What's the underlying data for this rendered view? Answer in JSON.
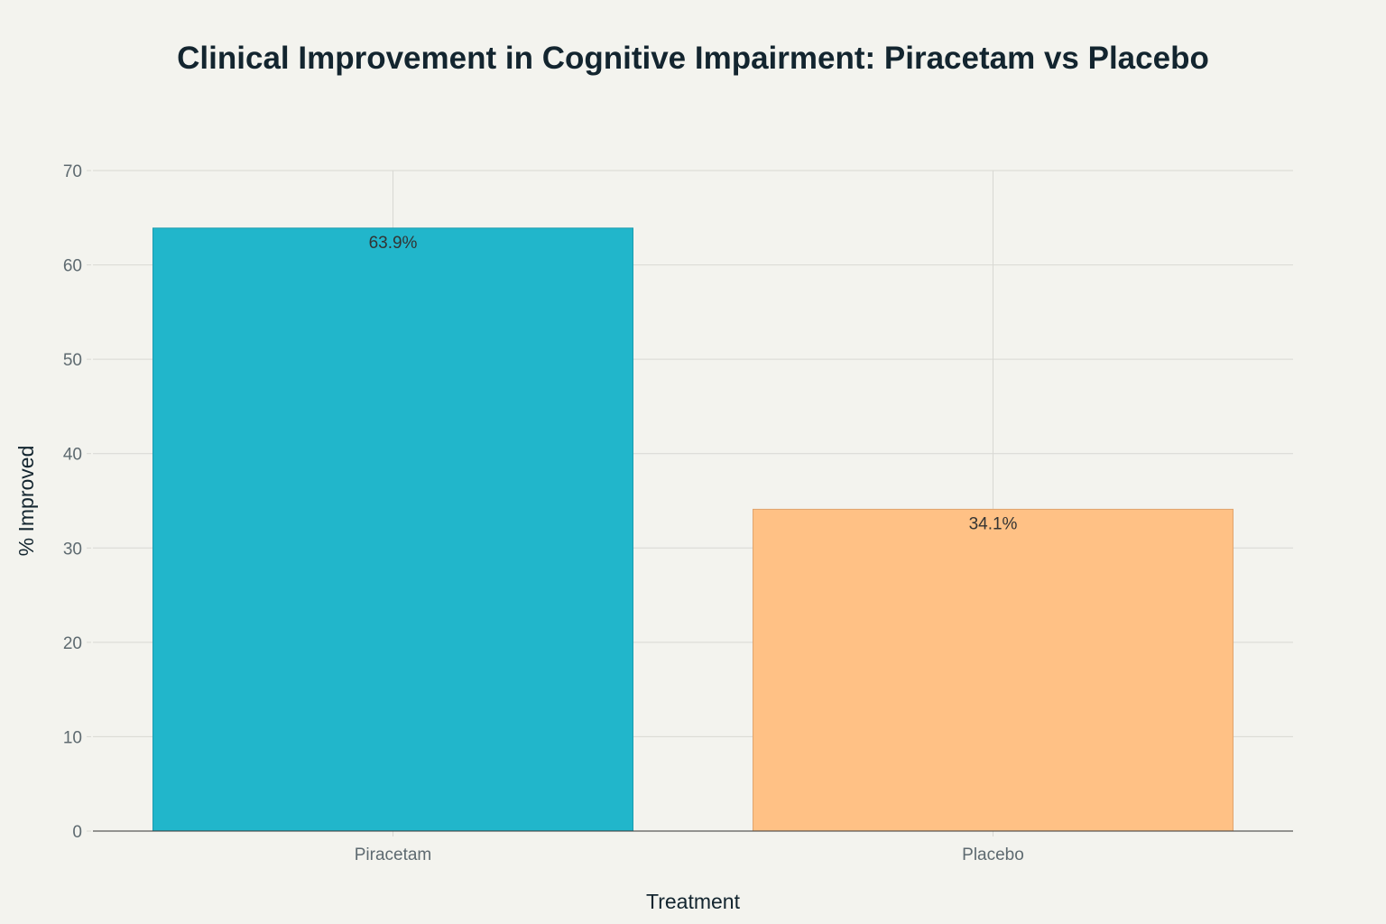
{
  "chart_data": {
    "type": "bar",
    "title": "Clinical Improvement in Cognitive Impairment: Piracetam vs Placebo",
    "xlabel": "Treatment",
    "ylabel": "% Improved",
    "categories": [
      "Piracetam",
      "Placebo"
    ],
    "values": [
      63.9,
      34.1
    ],
    "data_labels": [
      "63.9%",
      "34.1%"
    ],
    "colors": [
      "#21B6CB",
      "#FFC185"
    ],
    "border_colors": [
      "#1A9BAE",
      "#E0A46E"
    ],
    "ylim": [
      0,
      70
    ],
    "yticks": [
      0,
      10,
      20,
      30,
      40,
      50,
      60,
      70
    ],
    "ytick_labels": [
      "0",
      "10",
      "20",
      "30",
      "40",
      "50",
      "60",
      "70"
    ],
    "grid": true,
    "legend": "none"
  }
}
